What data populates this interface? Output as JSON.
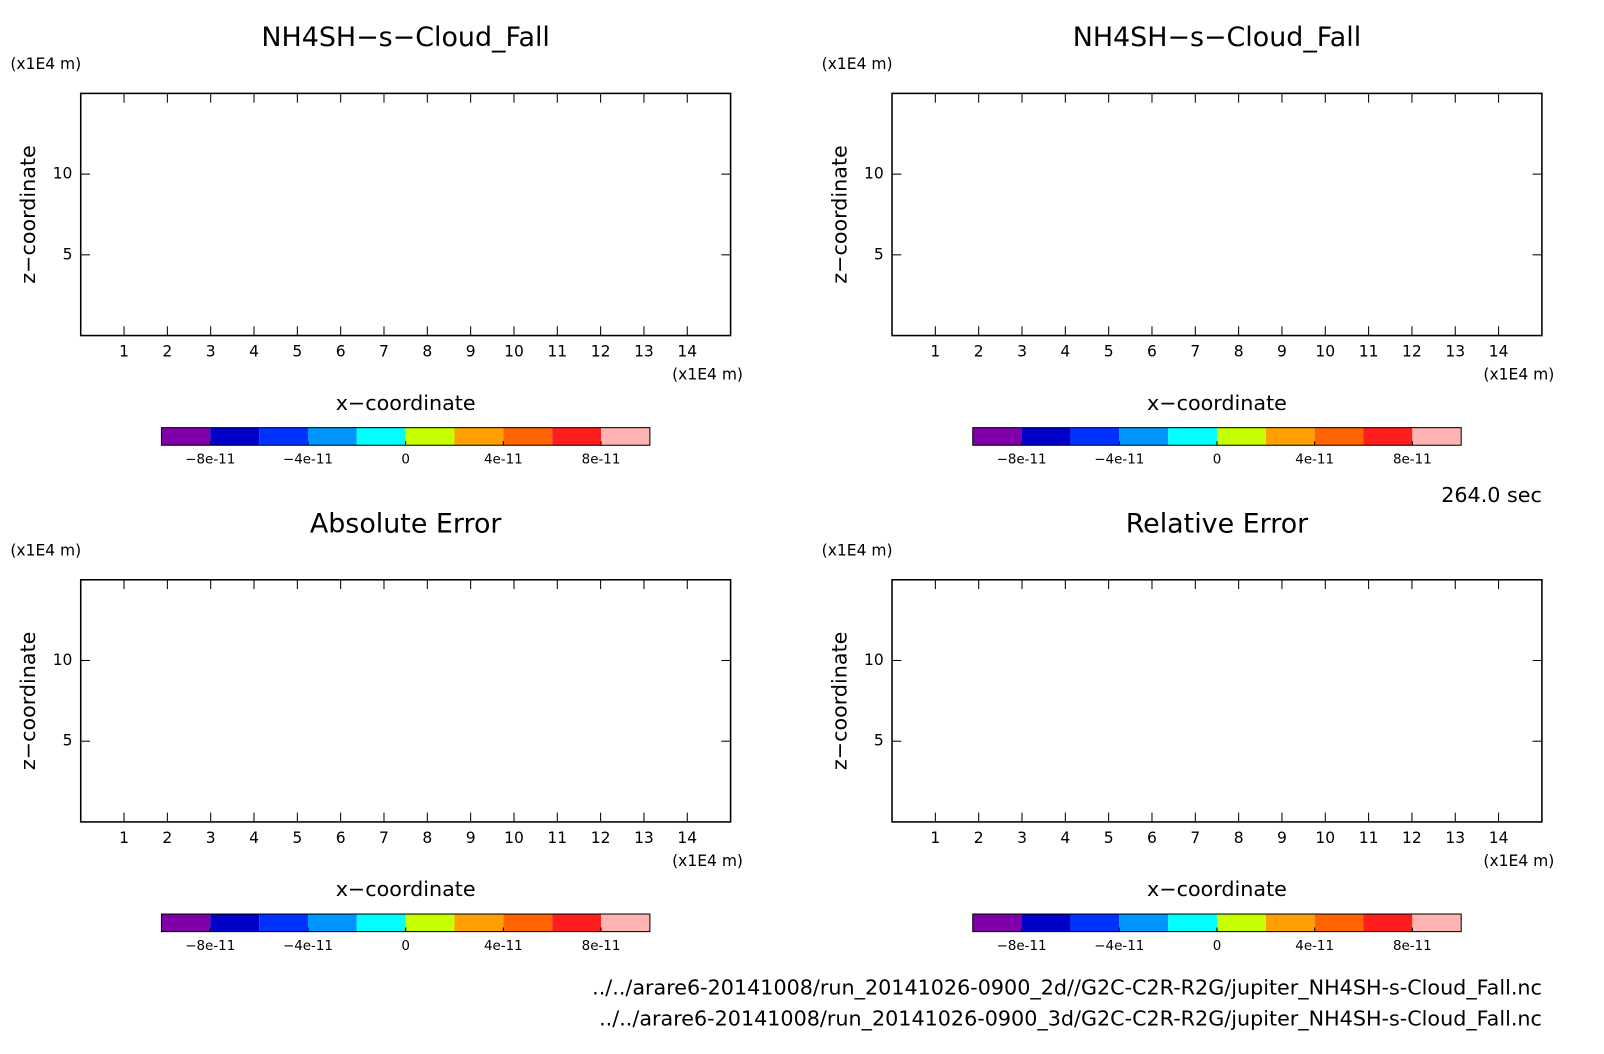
{
  "chart_data": [
    {
      "type": "contour",
      "title": "NH4SH−s−Cloud_Fall",
      "xlabel": "x−coordinate",
      "ylabel": "z−coordinate",
      "xunit": "(x1E4 m)",
      "yunit": "(x1E4 m)",
      "xlim": [
        0,
        15
      ],
      "ylim": [
        0,
        15
      ],
      "xticks": [
        1,
        2,
        3,
        4,
        5,
        6,
        7,
        8,
        9,
        10,
        11,
        12,
        13,
        14
      ],
      "yticks": [
        5,
        10
      ],
      "colorbar": {
        "lim": [
          -1e-10,
          1e-10
        ],
        "colors": [
          "#7f00a8",
          "#0000c8",
          "#0032ff",
          "#0096ff",
          "#00ffff",
          "#c8ff00",
          "#ffa000",
          "#ff6400",
          "#ff1e1e",
          "#ffb4b4"
        ],
        "ticks": [
          {
            "value": -8e-11,
            "label": "−8e-11"
          },
          {
            "value": -4e-11,
            "label": "−4e-11"
          },
          0,
          {
            "value": 4e-11,
            "label": "4e-11"
          },
          {
            "value": 8e-11,
            "label": "8e-11"
          }
        ]
      }
    },
    {
      "type": "contour",
      "title": "NH4SH−s−Cloud_Fall",
      "xlabel": "x−coordinate",
      "ylabel": "z−coordinate",
      "xunit": "(x1E4 m)",
      "yunit": "(x1E4 m)",
      "xlim": [
        0,
        15
      ],
      "ylim": [
        0,
        15
      ],
      "xticks": [
        1,
        2,
        3,
        4,
        5,
        6,
        7,
        8,
        9,
        10,
        11,
        12,
        13,
        14
      ],
      "yticks": [
        5,
        10
      ],
      "colorbar": {
        "lim": [
          -1e-10,
          1e-10
        ],
        "colors": [
          "#7f00a8",
          "#0000c8",
          "#0032ff",
          "#0096ff",
          "#00ffff",
          "#c8ff00",
          "#ffa000",
          "#ff6400",
          "#ff1e1e",
          "#ffb4b4"
        ],
        "ticks": [
          {
            "value": -8e-11,
            "label": "−8e-11"
          },
          {
            "value": -4e-11,
            "label": "−4e-11"
          },
          0,
          {
            "value": 4e-11,
            "label": "4e-11"
          },
          {
            "value": 8e-11,
            "label": "8e-11"
          }
        ]
      }
    },
    {
      "type": "contour",
      "title": "Absolute Error",
      "xlabel": "x−coordinate",
      "ylabel": "z−coordinate",
      "xunit": "(x1E4 m)",
      "yunit": "(x1E4 m)",
      "xlim": [
        0,
        15
      ],
      "ylim": [
        0,
        15
      ],
      "xticks": [
        1,
        2,
        3,
        4,
        5,
        6,
        7,
        8,
        9,
        10,
        11,
        12,
        13,
        14
      ],
      "yticks": [
        5,
        10
      ],
      "colorbar": {
        "lim": [
          -1e-10,
          1e-10
        ],
        "colors": [
          "#7f00a8",
          "#0000c8",
          "#0032ff",
          "#0096ff",
          "#00ffff",
          "#c8ff00",
          "#ffa000",
          "#ff6400",
          "#ff1e1e",
          "#ffb4b4"
        ],
        "ticks": [
          {
            "value": -8e-11,
            "label": "−8e-11"
          },
          {
            "value": -4e-11,
            "label": "−4e-11"
          },
          0,
          {
            "value": 4e-11,
            "label": "4e-11"
          },
          {
            "value": 8e-11,
            "label": "8e-11"
          }
        ]
      }
    },
    {
      "type": "contour",
      "title": "Relative Error",
      "xlabel": "x−coordinate",
      "ylabel": "z−coordinate",
      "xunit": "(x1E4 m)",
      "yunit": "(x1E4 m)",
      "xlim": [
        0,
        15
      ],
      "ylim": [
        0,
        15
      ],
      "xticks": [
        1,
        2,
        3,
        4,
        5,
        6,
        7,
        8,
        9,
        10,
        11,
        12,
        13,
        14
      ],
      "yticks": [
        5,
        10
      ],
      "colorbar": {
        "lim": [
          -1e-10,
          1e-10
        ],
        "colors": [
          "#7f00a8",
          "#0000c8",
          "#0032ff",
          "#0096ff",
          "#00ffff",
          "#c8ff00",
          "#ffa000",
          "#ff6400",
          "#ff1e1e",
          "#ffb4b4"
        ],
        "ticks": [
          {
            "value": -8e-11,
            "label": "−8e-11"
          },
          {
            "value": -4e-11,
            "label": "−4e-11"
          },
          0,
          {
            "value": 4e-11,
            "label": "4e-11"
          },
          {
            "value": 8e-11,
            "label": "8e-11"
          }
        ]
      }
    }
  ],
  "time_label": "264.0 sec",
  "file_paths": [
    "../../arare6-20141008/run_20141026-0900_2d//G2C-C2R-R2G/jupiter_NH4SH-s-Cloud_Fall.nc",
    "../../arare6-20141008/run_20141026-0900_3d/G2C-C2R-R2G/jupiter_NH4SH-s-Cloud_Fall.nc"
  ]
}
